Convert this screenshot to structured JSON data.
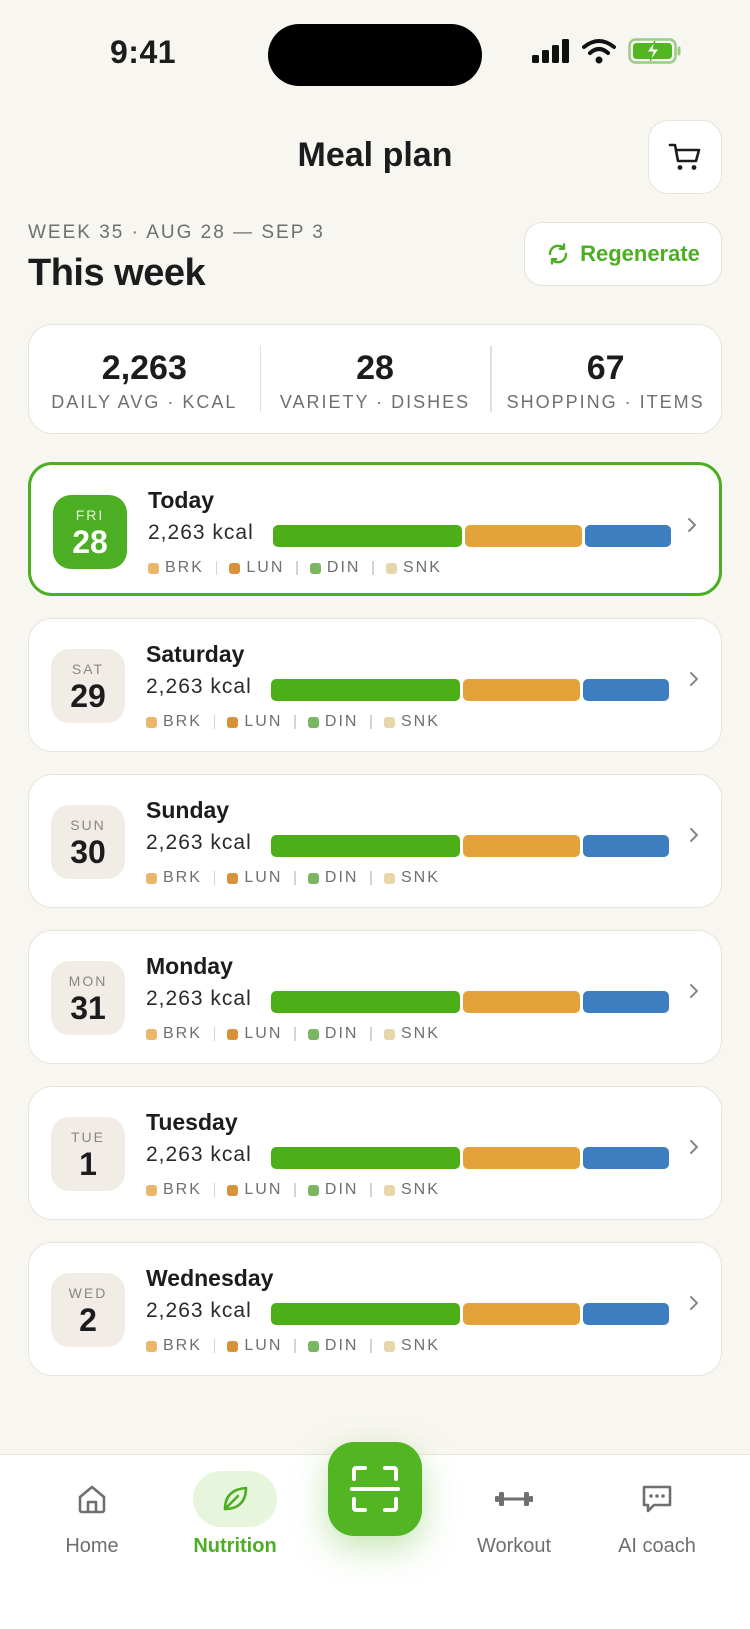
{
  "status_bar": {
    "time": "9:41"
  },
  "header": {
    "title": "Meal plan",
    "cart_icon": "shopping-cart-icon"
  },
  "week": {
    "range": "WEEK 35 · AUG 28 — SEP 3",
    "title": "This week",
    "regenerate_label": "Regenerate"
  },
  "stats": [
    {
      "value": "2,263",
      "label": "DAILY AVG · KCAL"
    },
    {
      "value": "28",
      "label": "VARIETY · DISHES"
    },
    {
      "value": "67",
      "label": "SHOPPING · ITEMS"
    }
  ],
  "legend": [
    {
      "label": "BRK",
      "color": "#e9b66a"
    },
    {
      "label": "LUN",
      "color": "#d9913a"
    },
    {
      "label": "DIN",
      "color": "#7bb661"
    },
    {
      "label": "SNK",
      "color": "#e6d6aa"
    }
  ],
  "bar_colors": {
    "din": "#4caf18",
    "lun": "#e3a33a",
    "snk": "#3d7ec0"
  },
  "days": [
    {
      "dow": "FRI",
      "date": "28",
      "name": "Today",
      "kcal": "2,263 kcal",
      "today": true
    },
    {
      "dow": "SAT",
      "date": "29",
      "name": "Saturday",
      "kcal": "2,263 kcal"
    },
    {
      "dow": "SUN",
      "date": "30",
      "name": "Sunday",
      "kcal": "2,263 kcal"
    },
    {
      "dow": "MON",
      "date": "31",
      "name": "Monday",
      "kcal": "2,263 kcal"
    },
    {
      "dow": "TUE",
      "date": "1",
      "name": "Tuesday",
      "kcal": "2,263 kcal"
    },
    {
      "dow": "WED",
      "date": "2",
      "name": "Wednesday",
      "kcal": "2,263 kcal"
    }
  ],
  "tabs": [
    {
      "label": "Home",
      "icon": "home-icon"
    },
    {
      "label": "Nutrition",
      "icon": "leaf-icon",
      "active": true
    },
    {
      "label": "Workout",
      "icon": "dumbbell-icon"
    },
    {
      "label": "AI coach",
      "icon": "chat-icon"
    }
  ],
  "accent": "#4caf23"
}
